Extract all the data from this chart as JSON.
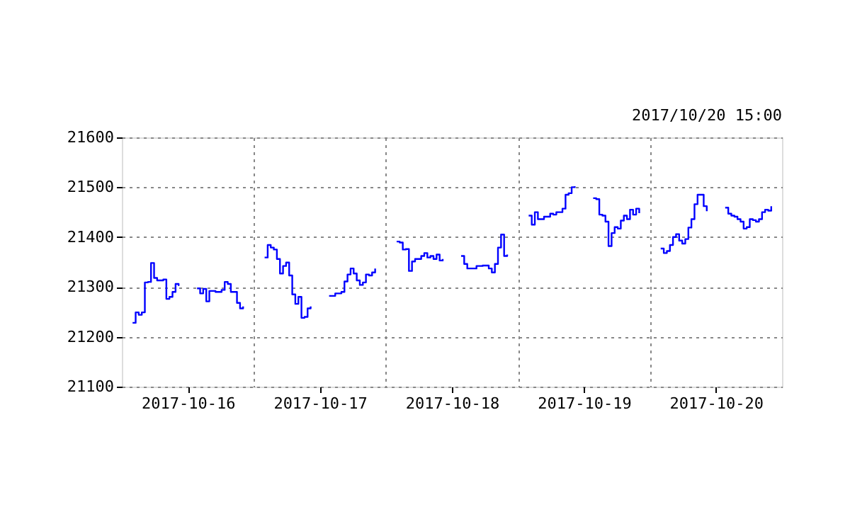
{
  "chart_data": {
    "type": "step",
    "subtitle": "2017/10/20 15:00",
    "categories": [
      null,
      null,
      null,
      null,
      null,
      null,
      null,
      null,
      null,
      null,
      null,
      null,
      null,
      null,
      null,
      null,
      null,
      null,
      null,
      null,
      null,
      "2017-10-16",
      null,
      null,
      null,
      null,
      null,
      null,
      null,
      null,
      null,
      null,
      null,
      null,
      null,
      null,
      null,
      null,
      null,
      null,
      null,
      null,
      null,
      null,
      null,
      null,
      null,
      null,
      null,
      null,
      null,
      null,
      null,
      null,
      null,
      null,
      null,
      null,
      null,
      null,
      null,
      null,
      null,
      null,
      "2017-10-17",
      null,
      null,
      null,
      null,
      null,
      null,
      null,
      null,
      null,
      null,
      null,
      null,
      null,
      null,
      null,
      null,
      null,
      null,
      null,
      null,
      null,
      null,
      null,
      null,
      null,
      null,
      null,
      null,
      null,
      null,
      null,
      null,
      null,
      null,
      null,
      null,
      null,
      null,
      null,
      null,
      null,
      null,
      "2017-10-18",
      null,
      null,
      null,
      null,
      null,
      null,
      null,
      null,
      null,
      null,
      null,
      null,
      null,
      null,
      null,
      null,
      null,
      null,
      null,
      null,
      null,
      null,
      null,
      null,
      null,
      null,
      null,
      null,
      null,
      null,
      null,
      null,
      null,
      null,
      null,
      null,
      null,
      null,
      null,
      null,
      null,
      null,
      "2017-10-19",
      null,
      null,
      null,
      null,
      null,
      null,
      null,
      null,
      null,
      null,
      null,
      null,
      null,
      null,
      null,
      null,
      null,
      null,
      null,
      null,
      null,
      null,
      null,
      null,
      null,
      null,
      null,
      null,
      null,
      null,
      null,
      null,
      null,
      null,
      null,
      null,
      null,
      null,
      null,
      null,
      null,
      null,
      "2017-10-20",
      null,
      null,
      null,
      null,
      null,
      null,
      null,
      null,
      null,
      null,
      null,
      null,
      null,
      null,
      null,
      null,
      null,
      null,
      null,
      null,
      null
    ],
    "series": [
      {
        "color": "#0000ff",
        "values": [
          null,
          null,
          null,
          21228,
          21249,
          21244,
          21249,
          21309,
          21310,
          21348,
          21318,
          21313,
          21313,
          21315,
          21276,
          21280,
          21290,
          21306,
          21302,
          null,
          null,
          null,
          null,
          null,
          21297,
          21287,
          21296,
          21271,
          21292,
          21292,
          21290,
          21290,
          21294,
          21310,
          21306,
          21290,
          21290,
          21268,
          21257,
          21261,
          null,
          null,
          null,
          null,
          null,
          null,
          21359,
          21384,
          21379,
          21375,
          21356,
          21327,
          21342,
          21349,
          21323,
          21285,
          21266,
          21280,
          21238,
          21240,
          21257,
          21261,
          null,
          null,
          null,
          null,
          null,
          21282,
          21282,
          21287,
          21287,
          21290,
          21311,
          21325,
          21337,
          21327,
          21313,
          21304,
          21309,
          21325,
          21323,
          21329,
          21337,
          null,
          null,
          null,
          null,
          null,
          null,
          21391,
          21389,
          21375,
          21376,
          21332,
          21351,
          21356,
          21356,
          21362,
          21368,
          21359,
          21362,
          21356,
          21365,
          21353,
          21356,
          null,
          null,
          null,
          null,
          null,
          21362,
          21346,
          21337,
          21337,
          21337,
          21342,
          21342,
          21343,
          21343,
          21337,
          21329,
          21346,
          21379,
          21405,
          21362,
          21365,
          null,
          null,
          null,
          null,
          null,
          null,
          21443,
          21425,
          21450,
          21436,
          21436,
          21441,
          21441,
          21447,
          21445,
          21450,
          21450,
          21457,
          21485,
          21488,
          21500,
          21502,
          null,
          null,
          null,
          null,
          null,
          21478,
          21476,
          21445,
          21443,
          21431,
          21382,
          21408,
          21420,
          21417,
          21433,
          21443,
          21436,
          21455,
          21445,
          21457,
          21448,
          null,
          null,
          null,
          null,
          null,
          null,
          21377,
          21368,
          21372,
          21384,
          21400,
          21406,
          21393,
          21387,
          21396,
          21419,
          21436,
          21466,
          21485,
          21485,
          21462,
          21452,
          null,
          null,
          null,
          null,
          null,
          21459,
          21447,
          21443,
          21441,
          21436,
          21431,
          21417,
          21420,
          21436,
          21434,
          21431,
          21436,
          21450,
          21455,
          21453,
          21462,
          null,
          null,
          null
        ]
      }
    ],
    "ylim": [
      21100,
      21600
    ],
    "yticks": [
      21100,
      21200,
      21300,
      21400,
      21500,
      21600
    ],
    "grid": true,
    "marker": "none",
    "line_style": "solid"
  }
}
